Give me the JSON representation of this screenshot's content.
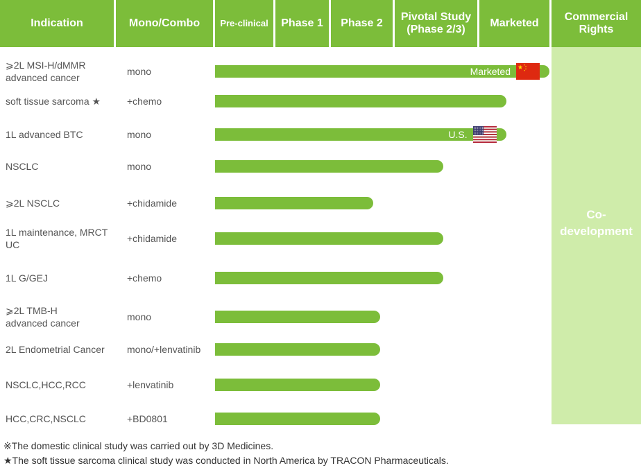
{
  "headers": {
    "indication": "Indication",
    "mono_combo": "Mono/Combo",
    "preclinical": "Pre-clinical",
    "phase1": "Phase 1",
    "phase2": "Phase 2",
    "pivotal_line1": "Pivotal Study",
    "pivotal_line2": "(Phase 2/3)",
    "marketed": "Marketed",
    "rights_line1": "Commercial",
    "rights_line2": "Rights"
  },
  "commercial_rights": {
    "line1": "Co-",
    "line2": "development"
  },
  "chart_data": {
    "type": "bar",
    "orientation": "horizontal",
    "stages": [
      "Pre-clinical",
      "Phase 1",
      "Phase 2",
      "Pivotal Study (Phase 2/3)",
      "Marketed"
    ],
    "rows": [
      {
        "indication_line1": "⩾2L MSI-H/dMMR",
        "indication_line2": "advanced cancer",
        "regimen": "mono",
        "progress_stage": 5.0,
        "bar_label": "Marketed",
        "flag": "china-flag"
      },
      {
        "indication_line1": "soft tissue sarcoma ★",
        "indication_line2": "",
        "regimen": "+chemo",
        "progress_stage": 4.4,
        "bar_label": "",
        "flag": ""
      },
      {
        "indication_line1": "1L advanced BTC",
        "indication_line2": "",
        "regimen": "mono",
        "progress_stage": 4.4,
        "bar_label": "U.S.",
        "flag": "us-flag"
      },
      {
        "indication_line1": "NSCLC",
        "indication_line2": "",
        "regimen": "mono",
        "progress_stage": 3.6,
        "bar_label": "",
        "flag": ""
      },
      {
        "indication_line1": "⩾2L NSCLC",
        "indication_line2": "",
        "regimen": "+chidamide",
        "progress_stage": 2.7,
        "bar_label": "",
        "flag": ""
      },
      {
        "indication_line1": "1L maintenance, MRCT",
        "indication_line2": "UC",
        "regimen": "+chidamide",
        "progress_stage": 3.6,
        "bar_label": "",
        "flag": ""
      },
      {
        "indication_line1": "1L G/GEJ",
        "indication_line2": "",
        "regimen": "+chemo",
        "progress_stage": 3.6,
        "bar_label": "",
        "flag": ""
      },
      {
        "indication_line1": "⩾2L TMB-H",
        "indication_line2": "advanced cancer",
        "regimen": "mono",
        "progress_stage": 2.8,
        "bar_label": "",
        "flag": ""
      },
      {
        "indication_line1": "2L Endometrial Cancer",
        "indication_line2": "",
        "regimen": "mono/+lenvatinib",
        "progress_stage": 2.8,
        "bar_label": "",
        "flag": ""
      },
      {
        "indication_line1": "NSCLC,HCC,RCC",
        "indication_line2": "",
        "regimen": "+lenvatinib",
        "progress_stage": 2.8,
        "bar_label": "",
        "flag": ""
      },
      {
        "indication_line1": "HCC,CRC,NSCLC",
        "indication_line2": "",
        "regimen": "+BD0801",
        "progress_stage": 2.8,
        "bar_label": "",
        "flag": ""
      }
    ]
  },
  "notes": {
    "note1": "※The domestic clinical study was carried out by 3D Medicines.",
    "note2": "★The soft tissue sarcoma clinical study was conducted in North America by TRACON Pharmaceuticals."
  },
  "colors": {
    "header_green": "#7cbd3a",
    "bar_green": "#7cbd3a",
    "rights_bg": "#cfecaa"
  }
}
